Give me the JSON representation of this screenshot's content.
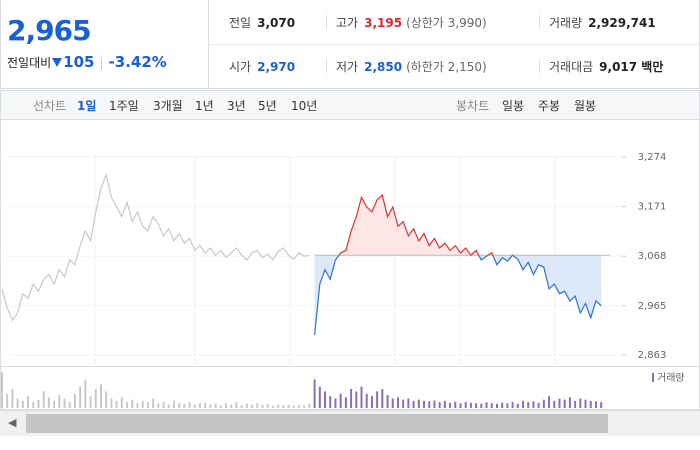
{
  "header": {
    "price": "2,965",
    "change_label": "전일대비",
    "change": "105",
    "change_pct": "-3.42%",
    "stats": [
      [
        {
          "label": "전일",
          "value": "3,070"
        },
        {
          "label": "고가",
          "value": "3,195",
          "note": "(상한가 3,990)"
        },
        {
          "label": "거래량",
          "value": "2,929,741"
        }
      ],
      [
        {
          "label": "시가",
          "value": "2,970"
        },
        {
          "label": "저가",
          "value": "2,850",
          "note": "(하한가 2,150)"
        },
        {
          "label": "거래대금",
          "value": "9,017 백만"
        }
      ]
    ]
  },
  "tabs": {
    "line_label": "선차트",
    "line": [
      "1일",
      "1주일",
      "3개월",
      "1년",
      "3년",
      "5년",
      "10년"
    ],
    "candle_label": "봉차트",
    "candle": [
      "일봉",
      "주봉",
      "월봉"
    ]
  },
  "chart_data": [
    {
      "type": "line",
      "ylim": [
        2842,
        3330
      ],
      "yticks": [
        {
          "value": 3274,
          "label": "3,274"
        },
        {
          "value": 3171,
          "label": "3,171"
        },
        {
          "value": 3068,
          "label": "3,068"
        },
        {
          "value": 2965,
          "label": "2,965"
        },
        {
          "value": 2863,
          "label": "2,863"
        }
      ],
      "grid": true,
      "baseline": 3070,
      "baseline_color": "#bbbbbb",
      "series": [
        {
          "color": "#c8c8c8",
          "values": [
            3000,
            2960,
            2935,
            2950,
            2990,
            2980,
            3010,
            2995,
            3020,
            3030,
            3010,
            3040,
            3025,
            3060,
            3050,
            3090,
            3120,
            3100,
            3160,
            3210,
            3237,
            3190,
            3170,
            3150,
            3180,
            3140,
            3160,
            3130,
            3120,
            3150,
            3135,
            3110,
            3125,
            3100,
            3115,
            3095,
            3105,
            3080,
            3090,
            3075,
            3085,
            3070,
            3080,
            3065,
            3075,
            3085,
            3070,
            3060,
            3075,
            3080,
            3065,
            3072,
            3060,
            3078,
            3085,
            3070,
            3062,
            3075,
            3068,
            3070,
            null,
            null,
            null,
            null,
            null,
            null,
            null,
            null,
            null,
            null,
            null,
            null,
            null,
            null,
            null,
            null,
            null,
            null,
            null,
            null,
            null,
            null,
            null,
            null,
            null,
            null,
            null,
            null,
            null,
            null,
            null,
            null,
            null,
            null,
            null,
            null,
            null,
            null,
            null,
            null,
            null,
            null,
            null,
            null,
            null,
            null,
            null,
            null,
            null,
            null,
            null,
            null,
            null,
            null,
            null,
            null
          ]
        },
        {
          "color": "#e03131",
          "color_down": "#2d6fd6",
          "fill_up": "#fde6e6",
          "fill_down": "#dde9f8",
          "values": [
            null,
            null,
            null,
            null,
            null,
            null,
            null,
            null,
            null,
            null,
            null,
            null,
            null,
            null,
            null,
            null,
            null,
            null,
            null,
            null,
            null,
            null,
            null,
            null,
            null,
            null,
            null,
            null,
            null,
            null,
            null,
            null,
            null,
            null,
            null,
            null,
            null,
            null,
            null,
            null,
            null,
            null,
            null,
            null,
            null,
            null,
            null,
            null,
            null,
            null,
            null,
            null,
            null,
            null,
            null,
            null,
            null,
            null,
            null,
            null,
            2904,
            3010,
            3040,
            3020,
            3060,
            3075,
            3080,
            3120,
            3150,
            3190,
            3170,
            3160,
            3185,
            3195,
            3150,
            3170,
            3130,
            3140,
            3110,
            3125,
            3100,
            3115,
            3090,
            3105,
            3085,
            3095,
            3080,
            3090,
            3075,
            3085,
            3070,
            3080,
            3060,
            3068,
            3075,
            3050,
            3065,
            3058,
            3070,
            3062,
            3040,
            3055,
            3030,
            3050,
            3045,
            3000,
            3010,
            2990,
            2995,
            2975,
            2985,
            2950,
            2970,
            2940,
            2975,
            2965
          ]
        }
      ]
    },
    {
      "type": "bar",
      "legend": "거래량",
      "legend_color": "#8a6fb8",
      "ylim": [
        0,
        160000
      ],
      "series": [
        {
          "color": "#c8c8c8",
          "values": [
            150000,
            60000,
            80000,
            40000,
            30000,
            50000,
            25000,
            35000,
            70000,
            45000,
            30000,
            55000,
            40000,
            25000,
            60000,
            90000,
            120000,
            50000,
            80000,
            100000,
            70000,
            40000,
            30000,
            45000,
            25000,
            35000,
            20000,
            30000,
            25000,
            40000,
            20000,
            25000,
            15000,
            30000,
            20000,
            18000,
            25000,
            15000,
            20000,
            22000,
            15000,
            18000,
            12000,
            20000,
            15000,
            25000,
            12000,
            18000,
            14000,
            20000,
            12000,
            16000,
            10000,
            15000,
            12000,
            14000,
            10000,
            13000,
            11000,
            18000,
            null,
            null,
            null,
            null,
            null,
            null,
            null,
            null,
            null,
            null,
            null,
            null,
            null,
            null,
            null,
            null,
            null,
            null,
            null,
            null,
            null,
            null,
            null,
            null,
            null,
            null,
            null,
            null,
            null,
            null,
            null,
            null,
            null,
            null,
            null,
            null,
            null,
            null,
            null,
            null,
            null,
            null,
            null,
            null,
            null,
            null,
            null,
            null,
            null,
            null,
            null,
            null,
            null,
            null,
            null,
            null
          ]
        },
        {
          "color": "#8a6fb8",
          "values": [
            null,
            null,
            null,
            null,
            null,
            null,
            null,
            null,
            null,
            null,
            null,
            null,
            null,
            null,
            null,
            null,
            null,
            null,
            null,
            null,
            null,
            null,
            null,
            null,
            null,
            null,
            null,
            null,
            null,
            null,
            null,
            null,
            null,
            null,
            null,
            null,
            null,
            null,
            null,
            null,
            null,
            null,
            null,
            null,
            null,
            null,
            null,
            null,
            null,
            null,
            null,
            null,
            null,
            null,
            null,
            null,
            null,
            null,
            null,
            null,
            120000,
            90000,
            70000,
            50000,
            40000,
            60000,
            45000,
            80000,
            70000,
            90000,
            60000,
            50000,
            70000,
            80000,
            55000,
            40000,
            45000,
            35000,
            40000,
            30000,
            35000,
            30000,
            28000,
            32000,
            25000,
            30000,
            22000,
            26000,
            20000,
            25000,
            22000,
            20000,
            18000,
            24000,
            20000,
            18000,
            22000,
            20000,
            25000,
            18000,
            30000,
            25000,
            28000,
            22000,
            35000,
            50000,
            30000,
            40000,
            35000,
            45000,
            30000,
            40000,
            35000,
            30000,
            28000,
            25000
          ]
        }
      ]
    }
  ]
}
